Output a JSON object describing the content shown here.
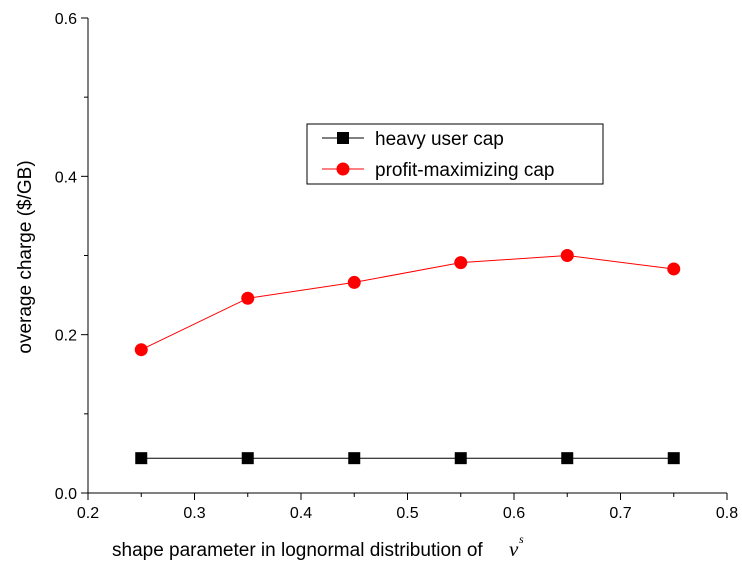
{
  "chart_data": {
    "type": "line",
    "xlabel": "shape parameter in lognormal distribution of",
    "xlabel_symbol": "v",
    "xlabel_superscript": "s",
    "ylabel": "overage charge ($/GB)",
    "xlim": [
      0.2,
      0.8
    ],
    "ylim": [
      0.0,
      0.6
    ],
    "x_ticks": [
      "0.2",
      "0.3",
      "0.4",
      "0.5",
      "0.6",
      "0.7",
      "0.8"
    ],
    "y_ticks": [
      "0.0",
      "0.2",
      "0.4",
      "0.6"
    ],
    "grid": false,
    "legend_position": "upper-right inside plot",
    "x": [
      0.25,
      0.35,
      0.45,
      0.55,
      0.65,
      0.75
    ],
    "series": [
      {
        "name": "heavy user cap",
        "color": "#000000",
        "marker": "square",
        "values": [
          0.044,
          0.044,
          0.044,
          0.044,
          0.044,
          0.044
        ]
      },
      {
        "name": "profit-maximizing cap",
        "color": "#ff0000",
        "marker": "circle",
        "values": [
          0.181,
          0.246,
          0.266,
          0.291,
          0.3,
          0.283
        ]
      }
    ]
  }
}
